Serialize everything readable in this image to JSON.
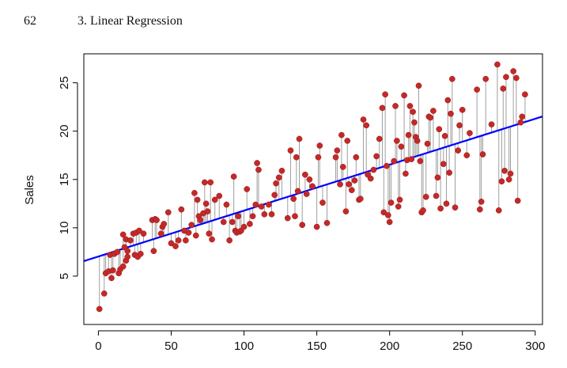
{
  "header": {
    "page_number": "62",
    "section_title": "3.  Linear Regression"
  },
  "chart_data": {
    "type": "scatter",
    "xlabel": "",
    "ylabel": "Sales",
    "xlim": [
      -10,
      305
    ],
    "ylim": [
      0,
      28
    ],
    "x_ticks": [
      0,
      50,
      100,
      150,
      200,
      250,
      300
    ],
    "y_ticks": [
      5,
      10,
      15,
      20,
      25
    ],
    "fit_line": {
      "intercept": 7.03,
      "slope": 0.0475
    },
    "colors": {
      "points": "#c62828",
      "fit_line": "#0000ff",
      "residuals": "#9e9e9e"
    },
    "points": [
      [
        0.7,
        1.6
      ],
      [
        4,
        3.2
      ],
      [
        5,
        5.3
      ],
      [
        7,
        5.5
      ],
      [
        8,
        7.2
      ],
      [
        9,
        4.8
      ],
      [
        10,
        5.6
      ],
      [
        11,
        7.3
      ],
      [
        13,
        7.5
      ],
      [
        14,
        5.3
      ],
      [
        15,
        5.7
      ],
      [
        17,
        6.0
      ],
      [
        17,
        9.3
      ],
      [
        18,
        8.0
      ],
      [
        19,
        6.6
      ],
      [
        19,
        8.8
      ],
      [
        20,
        7.0
      ],
      [
        20,
        7.6
      ],
      [
        22,
        8.7
      ],
      [
        24,
        9.4
      ],
      [
        25,
        7.2
      ],
      [
        26,
        9.5
      ],
      [
        27,
        7.0
      ],
      [
        28,
        9.7
      ],
      [
        29,
        7.3
      ],
      [
        31,
        9.4
      ],
      [
        37,
        10.8
      ],
      [
        38,
        7.6
      ],
      [
        39,
        10.9
      ],
      [
        40,
        10.8
      ],
      [
        43,
        9.4
      ],
      [
        44,
        10.1
      ],
      [
        45,
        10.4
      ],
      [
        48,
        11.6
      ],
      [
        50,
        8.4
      ],
      [
        53,
        8.1
      ],
      [
        55,
        8.7
      ],
      [
        57,
        11.9
      ],
      [
        59,
        9.7
      ],
      [
        60,
        8.7
      ],
      [
        62,
        9.5
      ],
      [
        64,
        10.3
      ],
      [
        66,
        13.6
      ],
      [
        67,
        9.2
      ],
      [
        68,
        12.9
      ],
      [
        69,
        11.2
      ],
      [
        70,
        10.8
      ],
      [
        72,
        11.5
      ],
      [
        73,
        14.7
      ],
      [
        74,
        12.5
      ],
      [
        75,
        11.7
      ],
      [
        76,
        9.4
      ],
      [
        77,
        14.7
      ],
      [
        78,
        8.8
      ],
      [
        80,
        12.9
      ],
      [
        83,
        13.3
      ],
      [
        86,
        10.6
      ],
      [
        88,
        12.4
      ],
      [
        90,
        8.7
      ],
      [
        92,
        10.6
      ],
      [
        93,
        15.3
      ],
      [
        94,
        9.7
      ],
      [
        95,
        9.5
      ],
      [
        96,
        11.2
      ],
      [
        97,
        9.6
      ],
      [
        98,
        9.7
      ],
      [
        100,
        10.1
      ],
      [
        102,
        14.0
      ],
      [
        104,
        10.4
      ],
      [
        106,
        11.2
      ],
      [
        108,
        12.4
      ],
      [
        109,
        16.7
      ],
      [
        110,
        16.0
      ],
      [
        112,
        12.2
      ],
      [
        114,
        11.4
      ],
      [
        117,
        12.4
      ],
      [
        119,
        11.4
      ],
      [
        121,
        13.4
      ],
      [
        122,
        14.6
      ],
      [
        124,
        15.2
      ],
      [
        126,
        15.9
      ],
      [
        130,
        11.0
      ],
      [
        132,
        18.0
      ],
      [
        134,
        13.0
      ],
      [
        135,
        11.2
      ],
      [
        136,
        17.3
      ],
      [
        137,
        13.8
      ],
      [
        138,
        19.2
      ],
      [
        140,
        10.3
      ],
      [
        142,
        15.5
      ],
      [
        143,
        13.5
      ],
      [
        145,
        15.0
      ],
      [
        147,
        14.3
      ],
      [
        150,
        10.1
      ],
      [
        151,
        17.3
      ],
      [
        152,
        18.5
      ],
      [
        154,
        12.6
      ],
      [
        157,
        10.5
      ],
      [
        163,
        17.3
      ],
      [
        164,
        18.0
      ],
      [
        166,
        14.5
      ],
      [
        167,
        19.6
      ],
      [
        168,
        16.3
      ],
      [
        170,
        11.7
      ],
      [
        171,
        19.0
      ],
      [
        172,
        14.5
      ],
      [
        174,
        13.9
      ],
      [
        176,
        14.9
      ],
      [
        177,
        17.3
      ],
      [
        179,
        12.9
      ],
      [
        180,
        13.0
      ],
      [
        182,
        21.2
      ],
      [
        184,
        20.6
      ],
      [
        185,
        15.5
      ],
      [
        187,
        15.1
      ],
      [
        189,
        16.0
      ],
      [
        191,
        17.4
      ],
      [
        193,
        19.2
      ],
      [
        195,
        22.4
      ],
      [
        196,
        11.6
      ],
      [
        197,
        23.8
      ],
      [
        198,
        16.4
      ],
      [
        199,
        11.3
      ],
      [
        200,
        10.6
      ],
      [
        201,
        12.6
      ],
      [
        203,
        16.9
      ],
      [
        204,
        22.6
      ],
      [
        205,
        19.0
      ],
      [
        206,
        12.2
      ],
      [
        207,
        12.9
      ],
      [
        208,
        18.4
      ],
      [
        210,
        23.7
      ],
      [
        211,
        15.6
      ],
      [
        212,
        17.0
      ],
      [
        213,
        19.6
      ],
      [
        214,
        22.6
      ],
      [
        215,
        17.1
      ],
      [
        216,
        22.0
      ],
      [
        217,
        20.9
      ],
      [
        218,
        19.4
      ],
      [
        219,
        19.0
      ],
      [
        220,
        24.7
      ],
      [
        221,
        16.9
      ],
      [
        222,
        11.6
      ],
      [
        223,
        11.8
      ],
      [
        225,
        13.2
      ],
      [
        226,
        18.7
      ],
      [
        227,
        21.5
      ],
      [
        228,
        21.4
      ],
      [
        230,
        22.1
      ],
      [
        232,
        13.3
      ],
      [
        233,
        15.2
      ],
      [
        234,
        20.2
      ],
      [
        235,
        12.0
      ],
      [
        237,
        16.6
      ],
      [
        238,
        19.5
      ],
      [
        239,
        12.5
      ],
      [
        240,
        23.2
      ],
      [
        241,
        15.7
      ],
      [
        242,
        21.8
      ],
      [
        243,
        25.4
      ],
      [
        245,
        12.1
      ],
      [
        247,
        18.0
      ],
      [
        248,
        20.6
      ],
      [
        250,
        22.2
      ],
      [
        253,
        17.5
      ],
      [
        255,
        19.8
      ],
      [
        260,
        24.3
      ],
      [
        262,
        11.9
      ],
      [
        263,
        12.7
      ],
      [
        264,
        17.6
      ],
      [
        266,
        25.4
      ],
      [
        270,
        20.7
      ],
      [
        274,
        26.9
      ],
      [
        275,
        11.8
      ],
      [
        277,
        14.8
      ],
      [
        278,
        24.4
      ],
      [
        279,
        15.9
      ],
      [
        280,
        25.6
      ],
      [
        282,
        15.0
      ],
      [
        283,
        15.6
      ],
      [
        285,
        26.2
      ],
      [
        287,
        25.5
      ],
      [
        288,
        12.8
      ],
      [
        290,
        20.9
      ],
      [
        291,
        21.5
      ],
      [
        293,
        23.8
      ]
    ]
  }
}
